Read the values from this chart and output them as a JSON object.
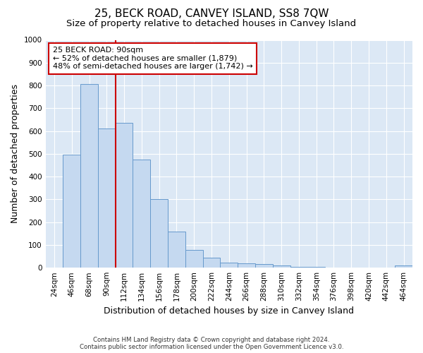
{
  "title": "25, BECK ROAD, CANVEY ISLAND, SS8 7QW",
  "subtitle": "Size of property relative to detached houses in Canvey Island",
  "xlabel": "Distribution of detached houses by size in Canvey Island",
  "ylabel": "Number of detached properties",
  "bar_labels": [
    "24sqm",
    "46sqm",
    "68sqm",
    "90sqm",
    "112sqm",
    "134sqm",
    "156sqm",
    "178sqm",
    "200sqm",
    "222sqm",
    "244sqm",
    "266sqm",
    "288sqm",
    "310sqm",
    "332sqm",
    "354sqm",
    "376sqm",
    "398sqm",
    "420sqm",
    "442sqm",
    "464sqm"
  ],
  "bar_values": [
    0,
    495,
    805,
    610,
    635,
    475,
    300,
    160,
    78,
    45,
    22,
    20,
    15,
    10,
    5,
    3,
    2,
    2,
    1,
    0,
    10
  ],
  "bar_color": "#c5d9f0",
  "bar_edge_color": "#6699cc",
  "background_color": "#dce8f5",
  "red_line_index": 3,
  "annotation_text": "25 BECK ROAD: 90sqm\n← 52% of detached houses are smaller (1,879)\n48% of semi-detached houses are larger (1,742) →",
  "annotation_box_color": "#ffffff",
  "annotation_border_color": "#cc0000",
  "ylim": [
    0,
    1000
  ],
  "yticks": [
    0,
    100,
    200,
    300,
    400,
    500,
    600,
    700,
    800,
    900,
    1000
  ],
  "footer_line1": "Contains HM Land Registry data © Crown copyright and database right 2024.",
  "footer_line2": "Contains public sector information licensed under the Open Government Licence v3.0.",
  "title_fontsize": 11,
  "subtitle_fontsize": 9.5,
  "tick_fontsize": 7.5,
  "ylabel_fontsize": 9,
  "xlabel_fontsize": 9
}
